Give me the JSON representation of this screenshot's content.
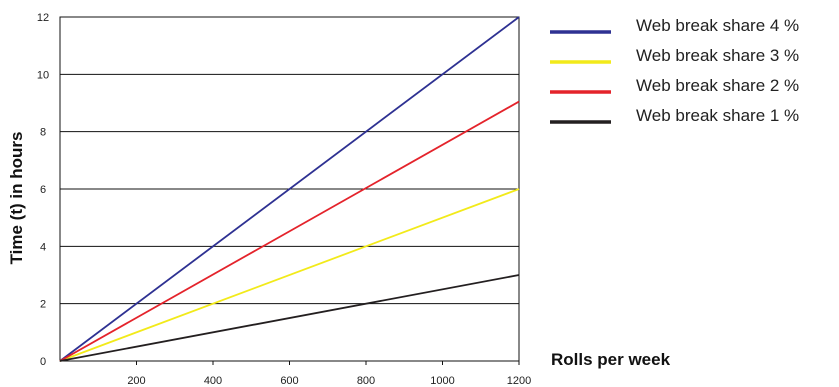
{
  "chart_data": {
    "type": "line",
    "title": "",
    "xlabel": "Rolls per week",
    "ylabel": "Time (t) in hours",
    "xlim": [
      0,
      1200
    ],
    "ylim": [
      0,
      12
    ],
    "x_ticks": [
      "200",
      "400",
      "600",
      "800",
      "1000",
      "1200"
    ],
    "y_ticks": [
      "0",
      "2",
      "4",
      "6",
      "8",
      "10",
      "12"
    ],
    "grid": "horizontal",
    "legend_position": "top-right",
    "series": [
      {
        "name": "Web break share 4 %",
        "color": "#2e3192",
        "x": [
          0,
          1200
        ],
        "y": [
          0,
          12
        ]
      },
      {
        "name": "Web break share 3 %",
        "color": "#f2ea1a",
        "x": [
          0,
          1200
        ],
        "y": [
          0,
          6
        ]
      },
      {
        "name": "Web break share 2 %",
        "color": "#e4232b",
        "x": [
          0,
          1200
        ],
        "y": [
          0,
          9.05
        ]
      },
      {
        "name": "Web break share 1 %",
        "color": "#231f20",
        "x": [
          0,
          1200
        ],
        "y": [
          0,
          3
        ]
      }
    ]
  }
}
